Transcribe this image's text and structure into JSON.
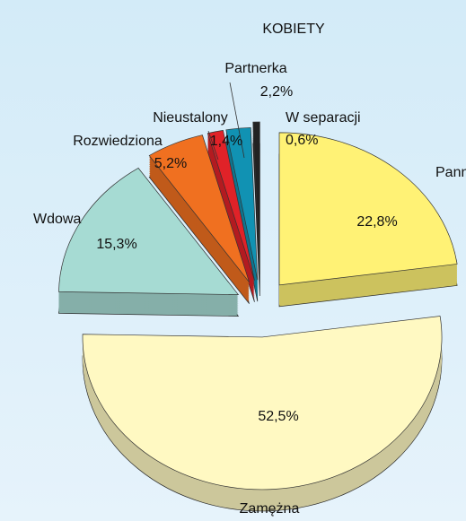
{
  "chart_data": {
    "type": "pie3d",
    "title": "KOBIETY",
    "categories": [
      "Panna",
      "Zamężna",
      "Wdowa",
      "Rozwiedziona",
      "Nieustalony",
      "Partnerka",
      "W separacji"
    ],
    "values": [
      22.8,
      52.5,
      15.3,
      5.2,
      1.4,
      2.2,
      0.6
    ],
    "value_labels": [
      "22,8%",
      "52,5%",
      "15,3%",
      "5,2%",
      "1,4%",
      "2,2%",
      "0,6%"
    ],
    "colors": [
      "#fff275",
      "#fff9c2",
      "#a6dbd3",
      "#f07020",
      "#e02228",
      "#1192b3",
      "#222222"
    ]
  }
}
